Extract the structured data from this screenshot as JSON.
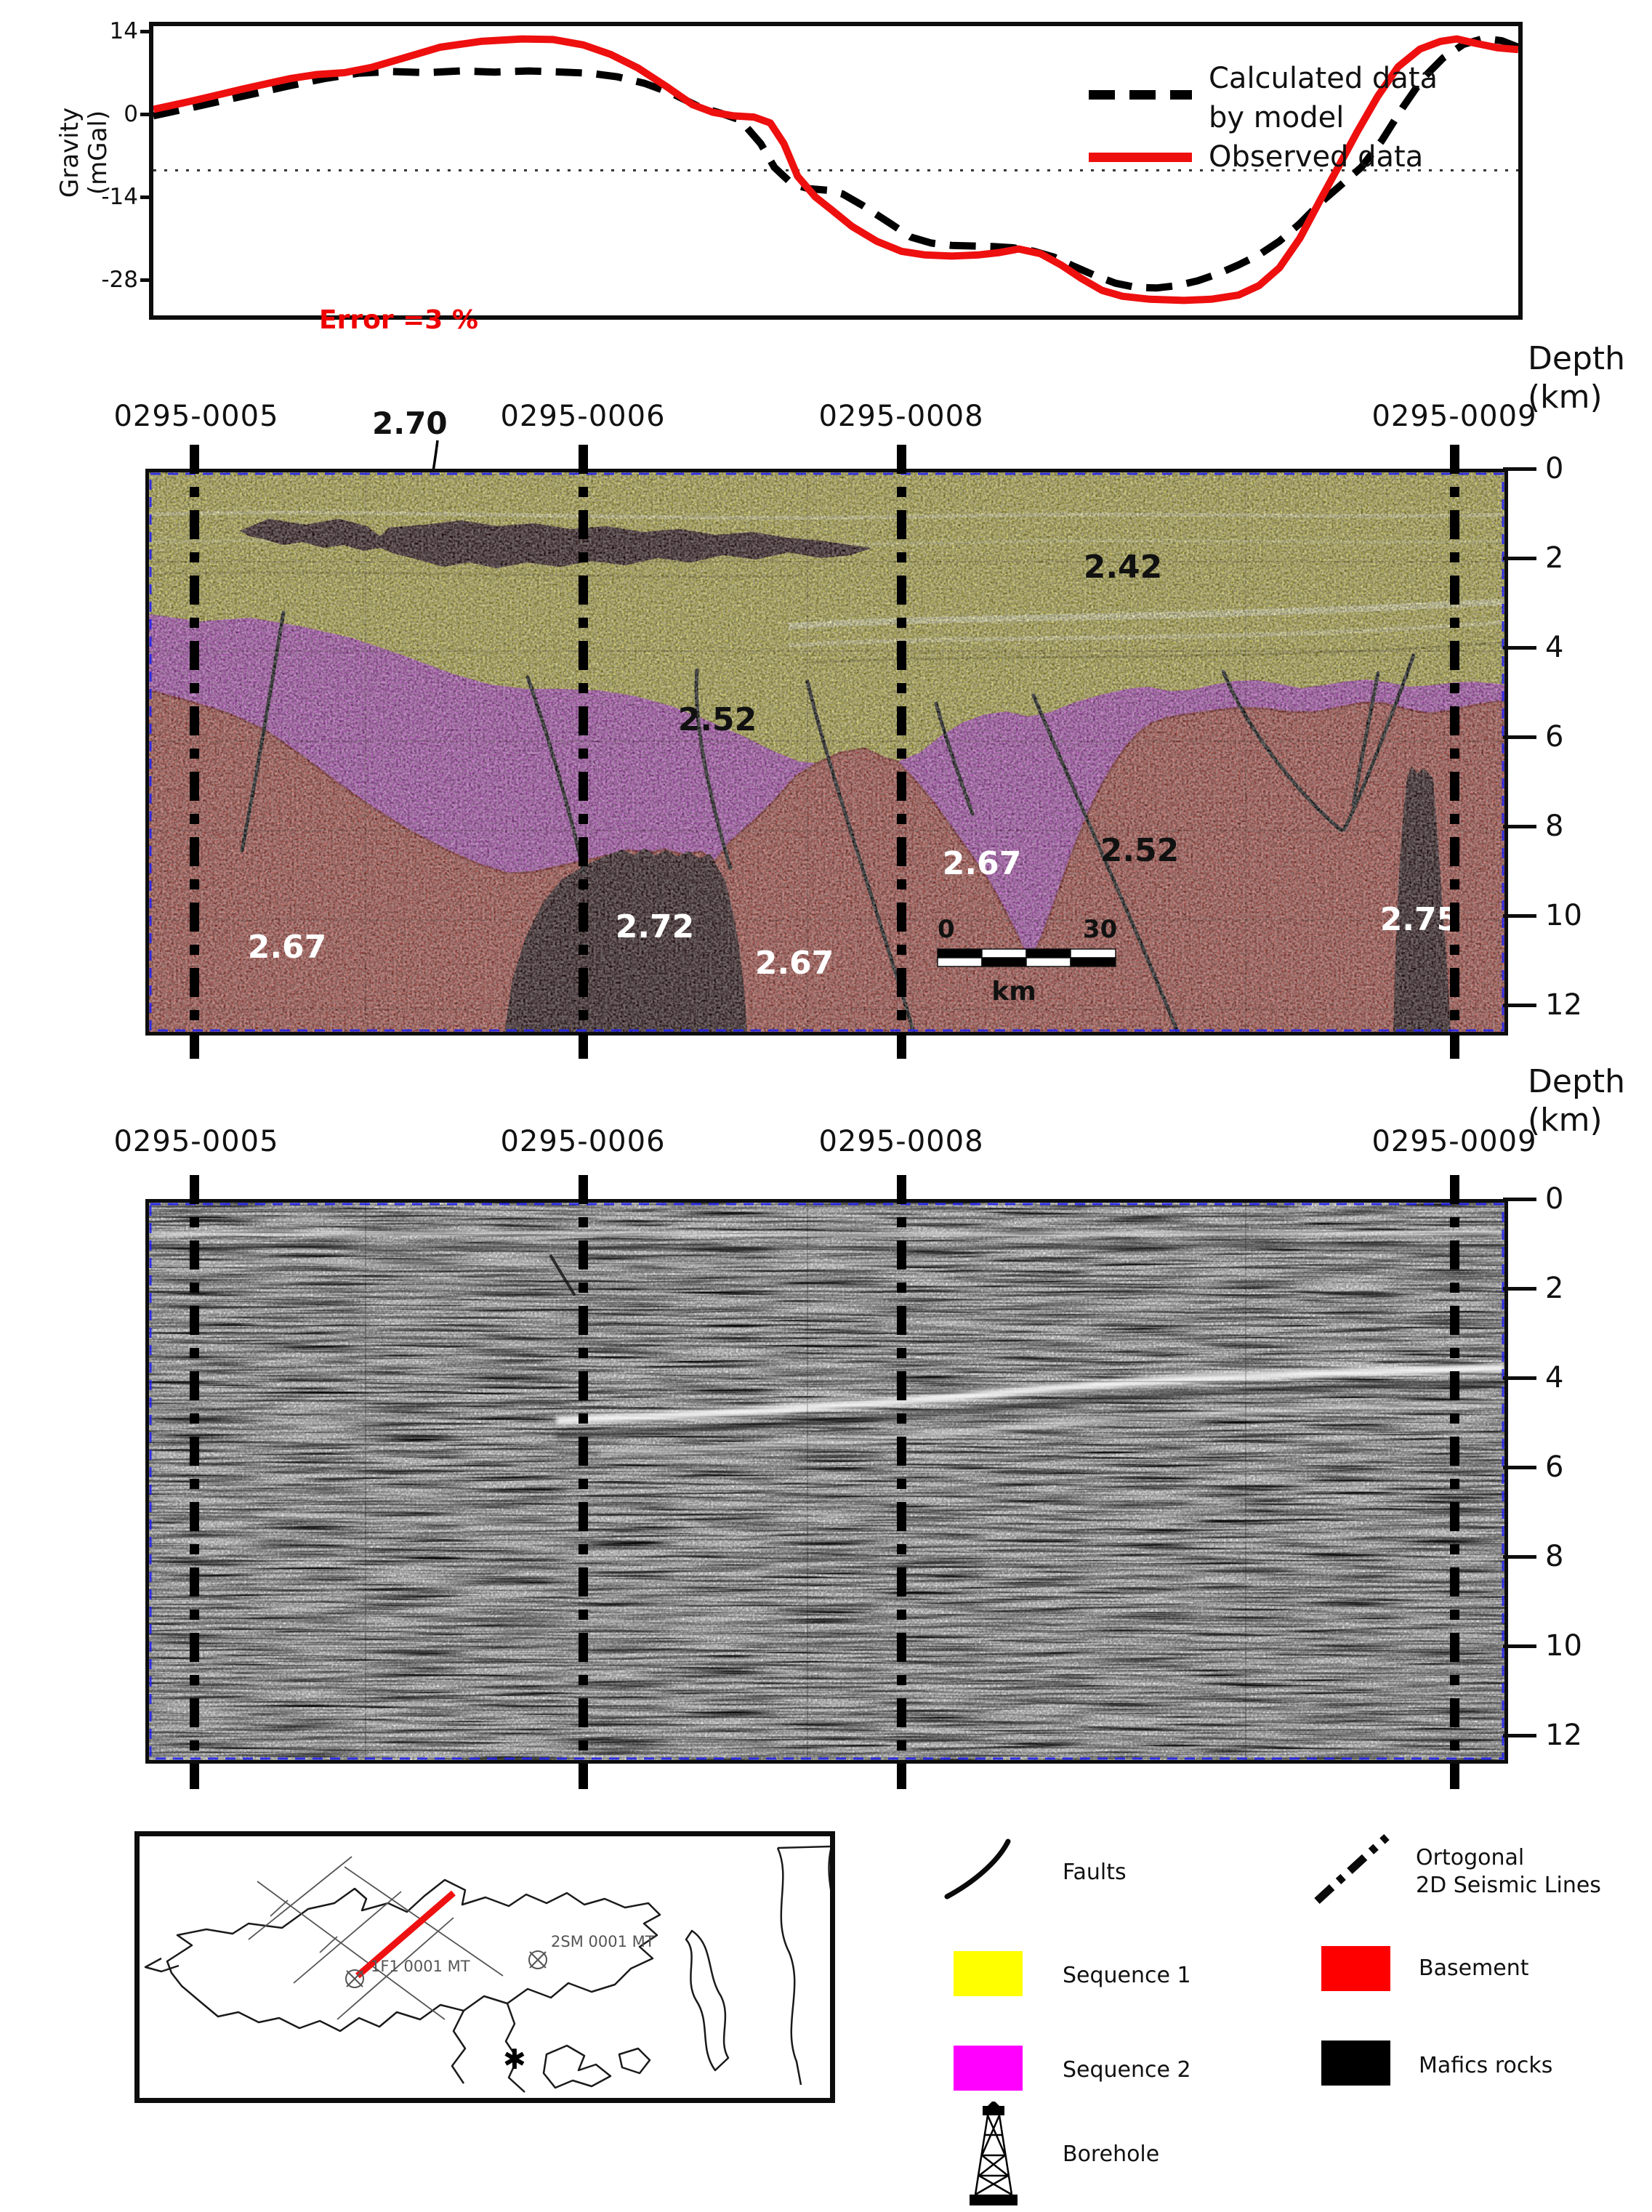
{
  "chart_data": {
    "type": "line",
    "title": "",
    "xlabel": "",
    "ylabel": "Gravity (mGal)",
    "yticks": [
      "14",
      "0",
      "-14",
      "-28"
    ],
    "ylim": [
      -34.8,
      15.6
    ],
    "grid": false,
    "legend_position": "inside top-right",
    "reference_line_y": -9.5,
    "annotation": "Error =3 %",
    "series": [
      {
        "name": "Calculated data by model",
        "style": "dashed",
        "color": "#000000",
        "points": [
          [
            0.0,
            -0.3
          ],
          [
            0.03,
            1.2
          ],
          [
            0.065,
            3.0
          ],
          [
            0.1,
            4.8
          ],
          [
            0.125,
            6.0
          ],
          [
            0.15,
            6.9
          ],
          [
            0.175,
            7.2
          ],
          [
            0.2,
            7.0
          ],
          [
            0.225,
            7.3
          ],
          [
            0.25,
            7.1
          ],
          [
            0.275,
            7.3
          ],
          [
            0.3,
            7.1
          ],
          [
            0.32,
            6.9
          ],
          [
            0.34,
            6.3
          ],
          [
            0.36,
            5.2
          ],
          [
            0.38,
            3.5
          ],
          [
            0.4,
            1.2
          ],
          [
            0.415,
            0.2
          ],
          [
            0.43,
            -1.0
          ],
          [
            0.445,
            -5.0
          ],
          [
            0.455,
            -9.0
          ],
          [
            0.468,
            -11.8
          ],
          [
            0.48,
            -12.6
          ],
          [
            0.495,
            -12.9
          ],
          [
            0.505,
            -13.5
          ],
          [
            0.52,
            -15.5
          ],
          [
            0.54,
            -18.5
          ],
          [
            0.555,
            -20.8
          ],
          [
            0.57,
            -21.8
          ],
          [
            0.585,
            -22.2
          ],
          [
            0.6,
            -22.3
          ],
          [
            0.615,
            -22.4
          ],
          [
            0.63,
            -22.6
          ],
          [
            0.645,
            -23.2
          ],
          [
            0.66,
            -24.2
          ],
          [
            0.675,
            -25.8
          ],
          [
            0.69,
            -27.3
          ],
          [
            0.705,
            -28.6
          ],
          [
            0.72,
            -29.3
          ],
          [
            0.735,
            -29.4
          ],
          [
            0.75,
            -29.0
          ],
          [
            0.765,
            -28.2
          ],
          [
            0.78,
            -27.0
          ],
          [
            0.795,
            -25.5
          ],
          [
            0.81,
            -23.8
          ],
          [
            0.825,
            -21.5
          ],
          [
            0.84,
            -18.5
          ],
          [
            0.855,
            -15.0
          ],
          [
            0.87,
            -12.0
          ],
          [
            0.885,
            -9.0
          ],
          [
            0.9,
            -4.5
          ],
          [
            0.915,
            1.0
          ],
          [
            0.93,
            6.0
          ],
          [
            0.945,
            9.5
          ],
          [
            0.96,
            11.8
          ],
          [
            0.975,
            12.8
          ],
          [
            0.988,
            12.4
          ],
          [
            1.0,
            11.3
          ]
        ]
      },
      {
        "name": "Observed data",
        "style": "solid",
        "color": "#ee0f0f",
        "points": [
          [
            0.0,
            0.8
          ],
          [
            0.03,
            2.3
          ],
          [
            0.065,
            4.2
          ],
          [
            0.1,
            6.0
          ],
          [
            0.12,
            6.7
          ],
          [
            0.14,
            7.0
          ],
          [
            0.16,
            7.9
          ],
          [
            0.185,
            9.6
          ],
          [
            0.21,
            11.3
          ],
          [
            0.24,
            12.3
          ],
          [
            0.27,
            12.7
          ],
          [
            0.293,
            12.6
          ],
          [
            0.315,
            11.7
          ],
          [
            0.335,
            10.1
          ],
          [
            0.355,
            7.8
          ],
          [
            0.375,
            4.8
          ],
          [
            0.395,
            1.6
          ],
          [
            0.41,
            0.3
          ],
          [
            0.425,
            -0.3
          ],
          [
            0.44,
            -0.5
          ],
          [
            0.452,
            -1.5
          ],
          [
            0.462,
            -5.0
          ],
          [
            0.472,
            -10.5
          ],
          [
            0.485,
            -14.0
          ],
          [
            0.497,
            -16.2
          ],
          [
            0.512,
            -19.0
          ],
          [
            0.53,
            -21.5
          ],
          [
            0.548,
            -23.2
          ],
          [
            0.565,
            -23.8
          ],
          [
            0.585,
            -24.0
          ],
          [
            0.605,
            -23.8
          ],
          [
            0.62,
            -23.4
          ],
          [
            0.634,
            -22.8
          ],
          [
            0.65,
            -23.6
          ],
          [
            0.665,
            -25.5
          ],
          [
            0.68,
            -27.8
          ],
          [
            0.695,
            -29.8
          ],
          [
            0.71,
            -30.8
          ],
          [
            0.73,
            -31.3
          ],
          [
            0.755,
            -31.5
          ],
          [
            0.775,
            -31.3
          ],
          [
            0.795,
            -30.6
          ],
          [
            0.81,
            -29.0
          ],
          [
            0.825,
            -26.0
          ],
          [
            0.84,
            -21.0
          ],
          [
            0.855,
            -14.5
          ],
          [
            0.868,
            -9.0
          ],
          [
            0.882,
            -3.0
          ],
          [
            0.897,
            3.0
          ],
          [
            0.912,
            8.0
          ],
          [
            0.928,
            11.0
          ],
          [
            0.943,
            12.3
          ],
          [
            0.955,
            12.7
          ],
          [
            0.97,
            11.9
          ],
          [
            0.985,
            11.2
          ],
          [
            1.0,
            10.9
          ]
        ]
      }
    ]
  },
  "gravity": {
    "ylabel1": "Gravity",
    "ylabel2": "(mGal)",
    "error": "Error =3 %",
    "legend_calc1": "Calculated data",
    "legend_calc2": "by model",
    "legend_obs": "Observed data"
  },
  "sections": {
    "lines": [
      "0295-0005",
      "0295-0006",
      "0295-0008",
      "0295-0009"
    ],
    "depth_title1": "Depth",
    "depth_title2": "(km)",
    "depth_ticks": [
      "0",
      "2",
      "4",
      "6",
      "8",
      "10",
      "12"
    ]
  },
  "interp": {
    "d_sill": "2.70",
    "d_seq1": "2.42",
    "d_seq2a": "2.52",
    "d_seq2b": "2.52",
    "d_base_left": "2.67",
    "d_base_mid": "2.67",
    "d_base_right": "2.67",
    "d_stock": "2.72",
    "d_plug": "2.75",
    "scale_start": "0",
    "scale_end": "30",
    "scale_unit": "km"
  },
  "legend": {
    "faults": "Faults",
    "ortho1": "Ortogonal",
    "ortho2": "2D Seismic Lines",
    "seq1": "Sequence 1",
    "basement": "Basement",
    "seq2": "Sequence 2",
    "mafics": "Mafics rocks",
    "borehole": "Borehole"
  },
  "legend_colors": {
    "seq1": "#ffff00",
    "seq2": "#ff00ff",
    "basement": "#ff0000",
    "mafics": "#000000"
  },
  "scolors": {
    "seq1": "#c9c04f",
    "seq2": "#c258c6",
    "basement": "#bf564d",
    "mafic": "#2b1013",
    "contact": "#8a1f17"
  },
  "map": {
    "well1": "1F1 0001 MT",
    "well2": "2SM 0001 MT"
  }
}
